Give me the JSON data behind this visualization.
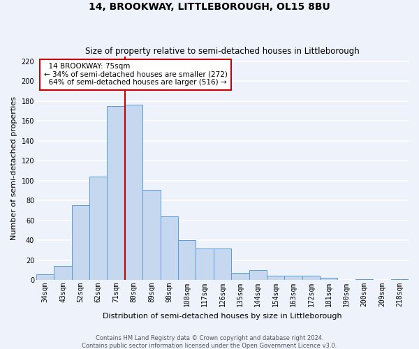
{
  "title": "14, BROOKWAY, LITTLEBOROUGH, OL15 8BU",
  "subtitle": "Size of property relative to semi-detached houses in Littleborough",
  "xlabel": "Distribution of semi-detached houses by size in Littleborough",
  "ylabel": "Number of semi-detached properties",
  "footnote": "Contains HM Land Registry data © Crown copyright and database right 2024.\nContains public sector information licensed under the Open Government Licence v3.0.",
  "categories": [
    "34sqm",
    "43sqm",
    "52sqm",
    "62sqm",
    "71sqm",
    "80sqm",
    "89sqm",
    "98sqm",
    "108sqm",
    "117sqm",
    "126sqm",
    "135sqm",
    "144sqm",
    "154sqm",
    "163sqm",
    "172sqm",
    "181sqm",
    "190sqm",
    "200sqm",
    "209sqm",
    "218sqm"
  ],
  "values": [
    6,
    14,
    75,
    104,
    175,
    176,
    91,
    64,
    40,
    32,
    32,
    7,
    10,
    4,
    4,
    4,
    2,
    0,
    1,
    0,
    1
  ],
  "bar_color": "#c5d8f0",
  "bar_edge_color": "#5b9bd5",
  "property_label": "14 BROOKWAY: 75sqm",
  "pct_smaller": 34,
  "n_smaller": 272,
  "pct_larger": 64,
  "n_larger": 516,
  "vline_color": "#cc0000",
  "annotation_box_color": "#cc0000",
  "ylim": [
    0,
    225
  ],
  "yticks": [
    0,
    20,
    40,
    60,
    80,
    100,
    120,
    140,
    160,
    180,
    200,
    220
  ],
  "background_color": "#eef2fa",
  "grid_color": "#ffffff",
  "title_fontsize": 10,
  "subtitle_fontsize": 8.5,
  "label_fontsize": 8,
  "tick_fontsize": 7,
  "footnote_fontsize": 6,
  "annotation_fontsize": 7.5
}
